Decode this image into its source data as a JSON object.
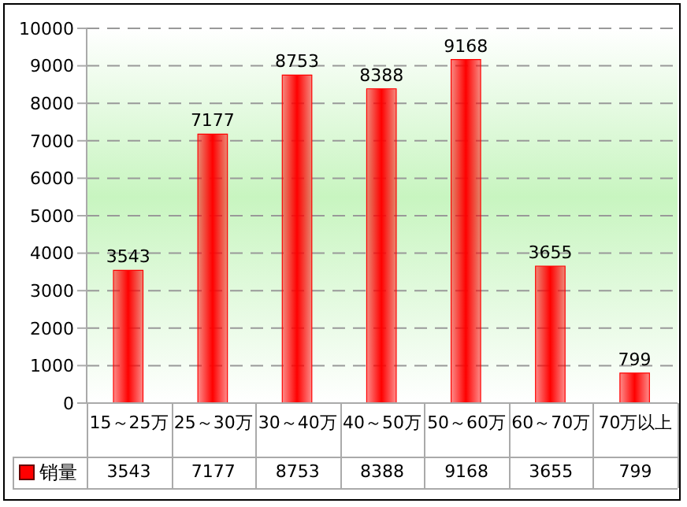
{
  "chart_data": {
    "type": "bar",
    "categories": [
      "15～25万",
      "25～30万",
      "30～40万",
      "40～50万",
      "50～60万",
      "60～70万",
      "70万以上"
    ],
    "series": [
      {
        "name": "销量",
        "color": "#ff0000",
        "values": [
          3543,
          7177,
          8753,
          8388,
          9168,
          3655,
          799
        ],
        "value_labels": [
          "3543",
          "7177",
          "8753",
          "8388",
          "9168",
          "3655",
          "799"
        ]
      }
    ],
    "ylim": [
      0,
      10000
    ],
    "yticks": [
      0,
      1000,
      2000,
      3000,
      4000,
      5000,
      6000,
      7000,
      8000,
      9000,
      10000
    ],
    "annotations": [
      "3543",
      "7177",
      "8753",
      "8388",
      "9168",
      "3655",
      "799"
    ],
    "grid": "y",
    "legend": "bottom",
    "data_labels": true
  }
}
